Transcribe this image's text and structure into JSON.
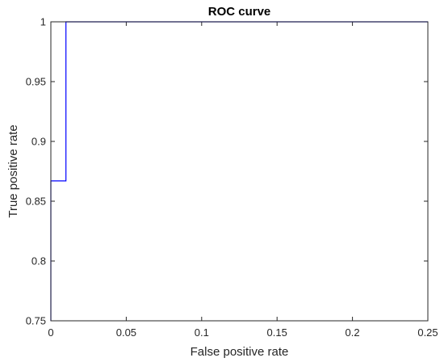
{
  "chart_data": {
    "type": "line",
    "title": "ROC curve",
    "xlabel": "False positive rate",
    "ylabel": "True positive rate",
    "xlim": [
      0,
      0.25
    ],
    "ylim": [
      0.75,
      1
    ],
    "xticks": [
      0,
      0.05,
      0.1,
      0.15,
      0.2,
      0.25
    ],
    "xtick_labels": [
      "0",
      "0.05",
      "0.1",
      "0.15",
      "0.2",
      "0.25"
    ],
    "yticks": [
      0.75,
      0.8,
      0.85,
      0.9,
      0.95,
      1
    ],
    "ytick_labels": [
      "0.75",
      "0.8",
      "0.85",
      "0.9",
      "0.95",
      "1"
    ],
    "grid": false,
    "box": true,
    "series": [
      {
        "color": "#0000ff",
        "step": true,
        "x": [
          0,
          0,
          0.01,
          0.01,
          0.25
        ],
        "y": [
          0.75,
          0.867,
          0.867,
          1,
          1
        ]
      }
    ]
  }
}
